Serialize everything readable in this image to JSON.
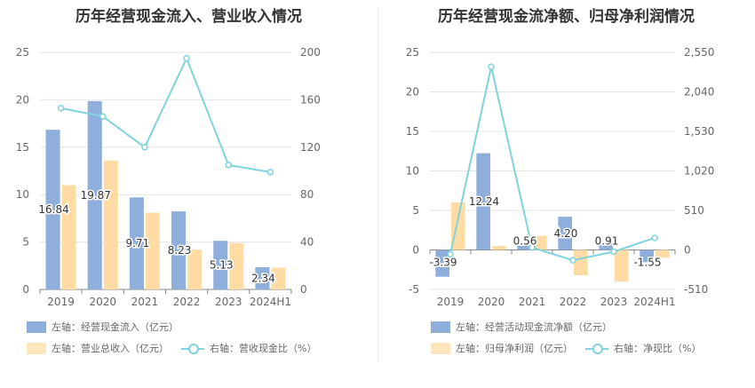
{
  "colors": {
    "bar1": "#8eaedc",
    "bar2": "#ffdca3",
    "line": "#7fd3dc",
    "grid": "#e6e6e6",
    "axis": "#888888",
    "text": "#666666"
  },
  "chart_data": [
    {
      "type": "bar",
      "title": "历年经营现金流入、营业收入情况",
      "categories": [
        "2019",
        "2020",
        "2021",
        "2022",
        "2023",
        "2024H1"
      ],
      "series": [
        {
          "name": "左轴：经营现金流入（亿元）",
          "axis": "left",
          "values": [
            16.84,
            19.87,
            9.71,
            8.23,
            5.13,
            2.34
          ],
          "labels": [
            "16.84",
            "19.87",
            "9.71",
            "8.23",
            "5.13",
            "2.34"
          ]
        },
        {
          "name": "左轴：营业总收入（亿元）",
          "axis": "left",
          "values": [
            11.0,
            13.6,
            8.1,
            4.2,
            4.9,
            2.3
          ]
        },
        {
          "name": "右轴：营收现金比（%）",
          "axis": "right",
          "type": "line",
          "values": [
            153,
            146,
            120,
            195,
            105,
            99
          ]
        }
      ],
      "yleft": {
        "ticks": [
          "0",
          "5",
          "10",
          "15",
          "20",
          "25"
        ],
        "lim": [
          0,
          25
        ]
      },
      "yright": {
        "ticks": [
          "0",
          "40",
          "80",
          "120",
          "160",
          "200"
        ],
        "lim": [
          0,
          200
        ]
      },
      "legend": [
        "左轴：经营现金流入（亿元）",
        "左轴：营业总收入（亿元）",
        "右轴：营收现金比（%）"
      ]
    },
    {
      "type": "bar",
      "title": "历年经营现金流净额、归母净利润情况",
      "categories": [
        "2019",
        "2020",
        "2021",
        "2022",
        "2023",
        "2024H1"
      ],
      "series": [
        {
          "name": "左轴：经营活动现金流净额（亿元）",
          "axis": "left",
          "values": [
            -3.39,
            12.24,
            0.56,
            4.2,
            0.91,
            -1.55
          ],
          "labels": [
            "-3.39",
            "12.24",
            "0.56",
            "4.20",
            "0.91",
            "-1.55"
          ]
        },
        {
          "name": "左轴：归母净利润（亿元）",
          "axis": "left",
          "values": [
            6.0,
            0.5,
            1.8,
            -3.2,
            -4.0,
            -1.0
          ]
        },
        {
          "name": "右轴：净现比（%）",
          "axis": "right",
          "type": "line",
          "values": [
            -56,
            2365,
            31,
            -133,
            -23,
            155
          ]
        }
      ],
      "yleft": {
        "ticks": [
          "-5",
          "0",
          "5",
          "10",
          "15",
          "20",
          "25"
        ],
        "lim": [
          -5,
          25
        ]
      },
      "yright": {
        "ticks": [
          "-510",
          "0",
          "510",
          "1,020",
          "1,530",
          "2,040",
          "2,550"
        ],
        "lim": [
          -510,
          2550
        ]
      },
      "legend": [
        "左轴：经营活动现金流净额（亿元）",
        "左轴：归母净利润（亿元）",
        "右轴：净现比（%）"
      ]
    }
  ]
}
